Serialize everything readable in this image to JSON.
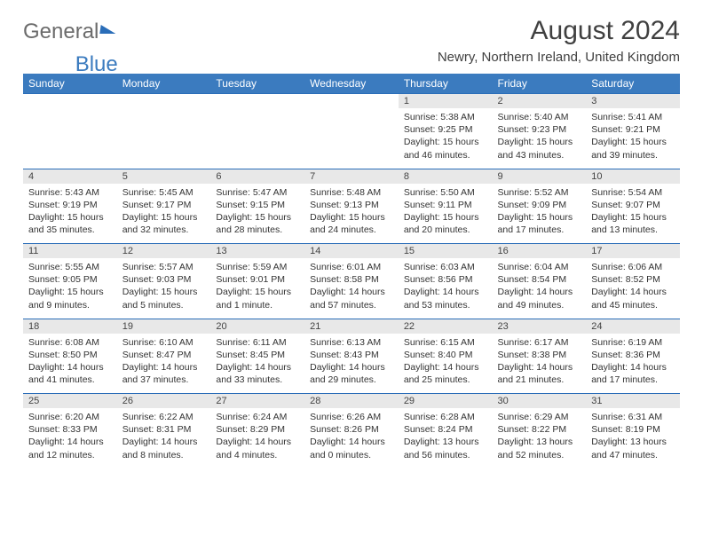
{
  "logo": {
    "part1": "General",
    "part2": "Blue"
  },
  "title": {
    "month": "August 2024",
    "location": "Newry, Northern Ireland, United Kingdom"
  },
  "colors": {
    "header_bg": "#3b7bbf",
    "header_text": "#ffffff",
    "daynum_bg": "#e8e8e8",
    "rule": "#2a6db8",
    "text": "#333333"
  },
  "weekdays": [
    "Sunday",
    "Monday",
    "Tuesday",
    "Wednesday",
    "Thursday",
    "Friday",
    "Saturday"
  ],
  "weeks": [
    [
      null,
      null,
      null,
      null,
      {
        "n": "1",
        "sr": "5:38 AM",
        "ss": "9:25 PM",
        "dl": "15 hours and 46 minutes."
      },
      {
        "n": "2",
        "sr": "5:40 AM",
        "ss": "9:23 PM",
        "dl": "15 hours and 43 minutes."
      },
      {
        "n": "3",
        "sr": "5:41 AM",
        "ss": "9:21 PM",
        "dl": "15 hours and 39 minutes."
      }
    ],
    [
      {
        "n": "4",
        "sr": "5:43 AM",
        "ss": "9:19 PM",
        "dl": "15 hours and 35 minutes."
      },
      {
        "n": "5",
        "sr": "5:45 AM",
        "ss": "9:17 PM",
        "dl": "15 hours and 32 minutes."
      },
      {
        "n": "6",
        "sr": "5:47 AM",
        "ss": "9:15 PM",
        "dl": "15 hours and 28 minutes."
      },
      {
        "n": "7",
        "sr": "5:48 AM",
        "ss": "9:13 PM",
        "dl": "15 hours and 24 minutes."
      },
      {
        "n": "8",
        "sr": "5:50 AM",
        "ss": "9:11 PM",
        "dl": "15 hours and 20 minutes."
      },
      {
        "n": "9",
        "sr": "5:52 AM",
        "ss": "9:09 PM",
        "dl": "15 hours and 17 minutes."
      },
      {
        "n": "10",
        "sr": "5:54 AM",
        "ss": "9:07 PM",
        "dl": "15 hours and 13 minutes."
      }
    ],
    [
      {
        "n": "11",
        "sr": "5:55 AM",
        "ss": "9:05 PM",
        "dl": "15 hours and 9 minutes."
      },
      {
        "n": "12",
        "sr": "5:57 AM",
        "ss": "9:03 PM",
        "dl": "15 hours and 5 minutes."
      },
      {
        "n": "13",
        "sr": "5:59 AM",
        "ss": "9:01 PM",
        "dl": "15 hours and 1 minute."
      },
      {
        "n": "14",
        "sr": "6:01 AM",
        "ss": "8:58 PM",
        "dl": "14 hours and 57 minutes."
      },
      {
        "n": "15",
        "sr": "6:03 AM",
        "ss": "8:56 PM",
        "dl": "14 hours and 53 minutes."
      },
      {
        "n": "16",
        "sr": "6:04 AM",
        "ss": "8:54 PM",
        "dl": "14 hours and 49 minutes."
      },
      {
        "n": "17",
        "sr": "6:06 AM",
        "ss": "8:52 PM",
        "dl": "14 hours and 45 minutes."
      }
    ],
    [
      {
        "n": "18",
        "sr": "6:08 AM",
        "ss": "8:50 PM",
        "dl": "14 hours and 41 minutes."
      },
      {
        "n": "19",
        "sr": "6:10 AM",
        "ss": "8:47 PM",
        "dl": "14 hours and 37 minutes."
      },
      {
        "n": "20",
        "sr": "6:11 AM",
        "ss": "8:45 PM",
        "dl": "14 hours and 33 minutes."
      },
      {
        "n": "21",
        "sr": "6:13 AM",
        "ss": "8:43 PM",
        "dl": "14 hours and 29 minutes."
      },
      {
        "n": "22",
        "sr": "6:15 AM",
        "ss": "8:40 PM",
        "dl": "14 hours and 25 minutes."
      },
      {
        "n": "23",
        "sr": "6:17 AM",
        "ss": "8:38 PM",
        "dl": "14 hours and 21 minutes."
      },
      {
        "n": "24",
        "sr": "6:19 AM",
        "ss": "8:36 PM",
        "dl": "14 hours and 17 minutes."
      }
    ],
    [
      {
        "n": "25",
        "sr": "6:20 AM",
        "ss": "8:33 PM",
        "dl": "14 hours and 12 minutes."
      },
      {
        "n": "26",
        "sr": "6:22 AM",
        "ss": "8:31 PM",
        "dl": "14 hours and 8 minutes."
      },
      {
        "n": "27",
        "sr": "6:24 AM",
        "ss": "8:29 PM",
        "dl": "14 hours and 4 minutes."
      },
      {
        "n": "28",
        "sr": "6:26 AM",
        "ss": "8:26 PM",
        "dl": "14 hours and 0 minutes."
      },
      {
        "n": "29",
        "sr": "6:28 AM",
        "ss": "8:24 PM",
        "dl": "13 hours and 56 minutes."
      },
      {
        "n": "30",
        "sr": "6:29 AM",
        "ss": "8:22 PM",
        "dl": "13 hours and 52 minutes."
      },
      {
        "n": "31",
        "sr": "6:31 AM",
        "ss": "8:19 PM",
        "dl": "13 hours and 47 minutes."
      }
    ]
  ],
  "labels": {
    "sunrise": "Sunrise: ",
    "sunset": "Sunset: ",
    "daylight": "Daylight: "
  }
}
